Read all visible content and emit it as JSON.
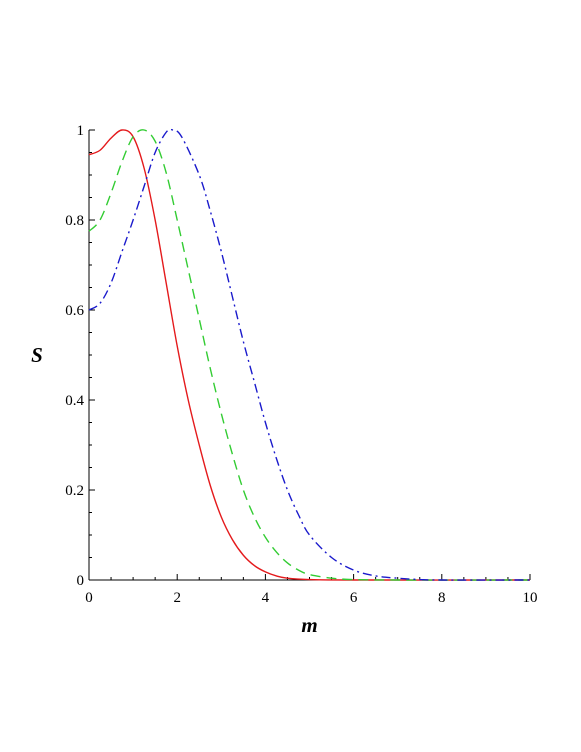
{
  "chart_data": {
    "type": "line",
    "xlabel": "m",
    "ylabel": "S",
    "xlim": [
      0,
      10
    ],
    "ylim": [
      0,
      1
    ],
    "x_ticks": [
      "0",
      "2",
      "4",
      "6",
      "8",
      "10"
    ],
    "y_ticks": [
      "0",
      "0.2",
      "0.4",
      "0.6",
      "0.8",
      "1"
    ],
    "grid": false,
    "legend": "none",
    "series": [
      {
        "color": "#e41a1c",
        "dash": "solid",
        "points": [
          [
            0,
            0.945
          ],
          [
            0.25,
            0.955
          ],
          [
            0.5,
            0.982
          ],
          [
            0.75,
            1.0
          ],
          [
            1.0,
            0.985
          ],
          [
            1.25,
            0.915
          ],
          [
            1.5,
            0.8
          ],
          [
            1.75,
            0.66
          ],
          [
            2.0,
            0.52
          ],
          [
            2.25,
            0.4
          ],
          [
            2.5,
            0.3
          ],
          [
            2.75,
            0.21
          ],
          [
            3.0,
            0.14
          ],
          [
            3.25,
            0.09
          ],
          [
            3.5,
            0.055
          ],
          [
            3.75,
            0.032
          ],
          [
            4.0,
            0.018
          ],
          [
            4.25,
            0.009
          ],
          [
            4.5,
            0.004
          ],
          [
            5.0,
            0.001
          ],
          [
            6.0,
            0.0
          ],
          [
            10.0,
            0.0
          ]
        ]
      },
      {
        "color": "#33cc33",
        "dash": "dashed",
        "points": [
          [
            0,
            0.775
          ],
          [
            0.25,
            0.8
          ],
          [
            0.5,
            0.86
          ],
          [
            0.75,
            0.93
          ],
          [
            1.0,
            0.985
          ],
          [
            1.25,
            1.0
          ],
          [
            1.5,
            0.975
          ],
          [
            1.75,
            0.905
          ],
          [
            2.0,
            0.8
          ],
          [
            2.25,
            0.69
          ],
          [
            2.5,
            0.58
          ],
          [
            2.75,
            0.47
          ],
          [
            3.0,
            0.37
          ],
          [
            3.25,
            0.28
          ],
          [
            3.5,
            0.2
          ],
          [
            3.75,
            0.14
          ],
          [
            4.0,
            0.095
          ],
          [
            4.25,
            0.062
          ],
          [
            4.5,
            0.038
          ],
          [
            4.75,
            0.022
          ],
          [
            5.0,
            0.012
          ],
          [
            5.5,
            0.004
          ],
          [
            6.0,
            0.001
          ],
          [
            7.0,
            0.0
          ],
          [
            10.0,
            0.0
          ]
        ]
      },
      {
        "color": "#1a1acc",
        "dash": "dashdot",
        "points": [
          [
            0,
            0.6
          ],
          [
            0.25,
            0.615
          ],
          [
            0.5,
            0.66
          ],
          [
            0.75,
            0.73
          ],
          [
            1.0,
            0.8
          ],
          [
            1.25,
            0.875
          ],
          [
            1.5,
            0.95
          ],
          [
            1.75,
            0.995
          ],
          [
            1.9,
            1.0
          ],
          [
            2.1,
            0.985
          ],
          [
            2.5,
            0.9
          ],
          [
            2.75,
            0.82
          ],
          [
            3.0,
            0.73
          ],
          [
            3.25,
            0.63
          ],
          [
            3.5,
            0.53
          ],
          [
            3.75,
            0.44
          ],
          [
            4.0,
            0.35
          ],
          [
            4.25,
            0.27
          ],
          [
            4.5,
            0.2
          ],
          [
            4.75,
            0.145
          ],
          [
            5.0,
            0.1
          ],
          [
            5.5,
            0.05
          ],
          [
            6.0,
            0.022
          ],
          [
            6.5,
            0.009
          ],
          [
            7.0,
            0.004
          ],
          [
            7.5,
            0.001
          ],
          [
            8.0,
            0.0
          ],
          [
            10.0,
            0.0
          ]
        ]
      }
    ]
  }
}
